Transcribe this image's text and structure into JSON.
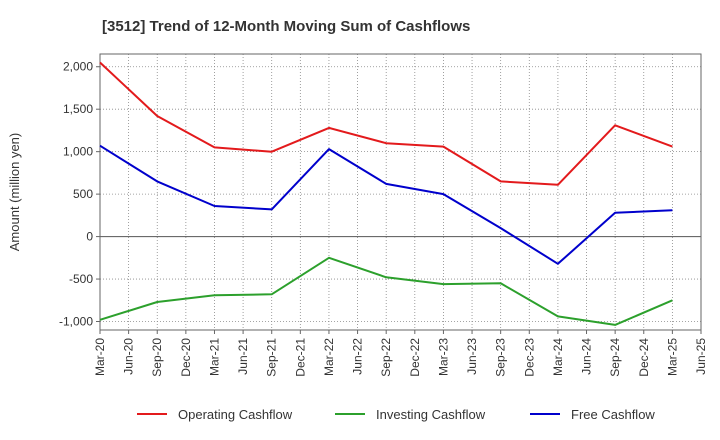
{
  "chart_data": {
    "type": "line",
    "title": "[3512]  Trend of 12-Month Moving Sum of Cashflows",
    "ylabel": "Amount (million yen)",
    "xlabel": "",
    "ylim": [
      -1100,
      2150
    ],
    "yticks": [
      2000,
      1500,
      1000,
      500,
      0,
      -500,
      -1000
    ],
    "ytick_labels": [
      "2,000",
      "1,500",
      "1,000",
      "500",
      "0",
      "-500",
      "-1,000"
    ],
    "categories": [
      "Mar-20",
      "Jun-20",
      "Sep-20",
      "Dec-20",
      "Mar-21",
      "Jun-21",
      "Sep-21",
      "Dec-21",
      "Mar-22",
      "Jun-22",
      "Sep-22",
      "Dec-22",
      "Mar-23",
      "Jun-23",
      "Sep-23",
      "Dec-23",
      "Mar-24",
      "Jun-24",
      "Sep-24",
      "Dec-24",
      "Mar-25",
      "Jun-25"
    ],
    "grid": true,
    "legend_position": "bottom",
    "series": [
      {
        "name": "Operating Cashflow",
        "color": "#e31a1c",
        "points": [
          {
            "x": "Mar-20",
            "y": 2050
          },
          {
            "x": "Sep-20",
            "y": 1420
          },
          {
            "x": "Mar-21",
            "y": 1050
          },
          {
            "x": "Sep-21",
            "y": 1000
          },
          {
            "x": "Mar-22",
            "y": 1280
          },
          {
            "x": "Sep-22",
            "y": 1100
          },
          {
            "x": "Mar-23",
            "y": 1060
          },
          {
            "x": "Sep-23",
            "y": 650
          },
          {
            "x": "Mar-24",
            "y": 610
          },
          {
            "x": "Sep-24",
            "y": 1310
          },
          {
            "x": "Mar-25",
            "y": 1060
          }
        ]
      },
      {
        "name": "Investing Cashflow",
        "color": "#2ca02c",
        "points": [
          {
            "x": "Mar-20",
            "y": -980
          },
          {
            "x": "Sep-20",
            "y": -770
          },
          {
            "x": "Mar-21",
            "y": -690
          },
          {
            "x": "Sep-21",
            "y": -680
          },
          {
            "x": "Mar-22",
            "y": -250
          },
          {
            "x": "Sep-22",
            "y": -480
          },
          {
            "x": "Mar-23",
            "y": -560
          },
          {
            "x": "Sep-23",
            "y": -550
          },
          {
            "x": "Mar-24",
            "y": -940
          },
          {
            "x": "Sep-24",
            "y": -1040
          },
          {
            "x": "Mar-25",
            "y": -750
          }
        ]
      },
      {
        "name": "Free Cashflow",
        "color": "#0000cc",
        "points": [
          {
            "x": "Mar-20",
            "y": 1070
          },
          {
            "x": "Sep-20",
            "y": 650
          },
          {
            "x": "Mar-21",
            "y": 360
          },
          {
            "x": "Sep-21",
            "y": 320
          },
          {
            "x": "Mar-22",
            "y": 1030
          },
          {
            "x": "Sep-22",
            "y": 620
          },
          {
            "x": "Mar-23",
            "y": 500
          },
          {
            "x": "Sep-23",
            "y": 100
          },
          {
            "x": "Mar-24",
            "y": -320
          },
          {
            "x": "Sep-24",
            "y": 280
          },
          {
            "x": "Mar-25",
            "y": 310
          }
        ]
      }
    ]
  }
}
